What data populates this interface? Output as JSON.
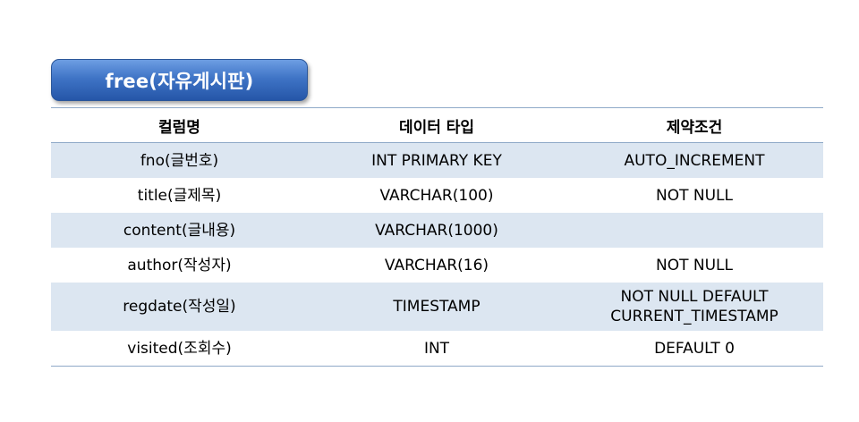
{
  "title": "free(자유게시판)",
  "headers": [
    "컬럼명",
    "데이터 타입",
    "제약조건"
  ],
  "rows": [
    {
      "column": "fno(글번호)",
      "type": "INT PRIMARY KEY",
      "constraint": [
        "AUTO_INCREMENT"
      ]
    },
    {
      "column": "title(글제목)",
      "type": "VARCHAR(100)",
      "constraint": [
        "NOT NULL"
      ]
    },
    {
      "column": "content(글내용)",
      "type": "VARCHAR(1000)",
      "constraint": []
    },
    {
      "column": "author(작성자)",
      "type": "VARCHAR(16)",
      "constraint": [
        "NOT NULL"
      ]
    },
    {
      "column": "regdate(작성일)",
      "type": "TIMESTAMP",
      "constraint": [
        "NOT NULL DEFAULT",
        "CURRENT_TIMESTAMP"
      ]
    },
    {
      "column": "visited(조회수)",
      "type": "INT",
      "constraint": [
        "DEFAULT 0"
      ]
    }
  ],
  "colors": {
    "title_bg": "#3f74c6",
    "row_band": "#dce6f1",
    "rule": "#8fa9c8"
  }
}
